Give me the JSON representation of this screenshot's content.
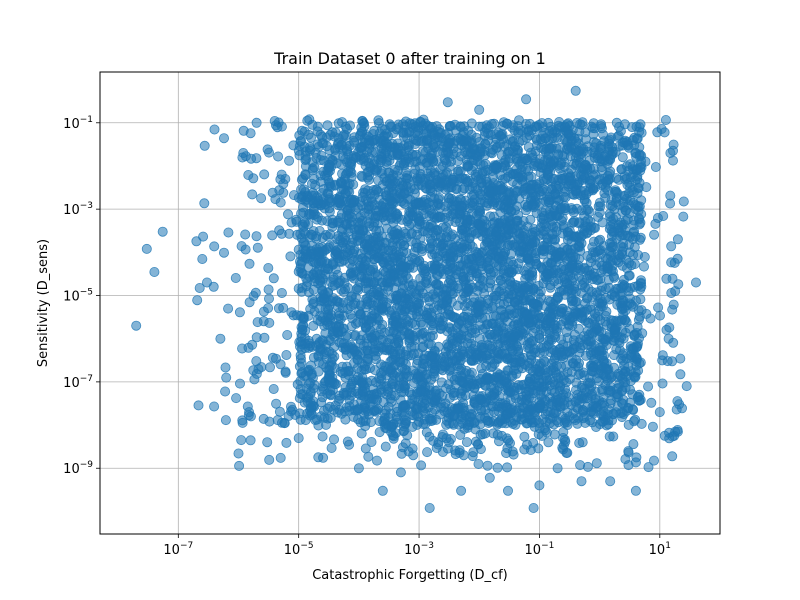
{
  "chart_data": {
    "type": "scatter",
    "title": "Train Dataset 0 after training on 1",
    "xlabel": "Catastrophic Forgetting (D_cf)",
    "ylabel": "Sensitivity (D_sens)",
    "xscale": "log",
    "yscale": "log",
    "xlim": [
      5e-09,
      100
    ],
    "ylim": [
      3e-11,
      1.5
    ],
    "xticks": [
      {
        "value": 1e-07,
        "base": "10",
        "exp": "−7"
      },
      {
        "value": 1e-05,
        "base": "10",
        "exp": "−5"
      },
      {
        "value": 0.001,
        "base": "10",
        "exp": "−3"
      },
      {
        "value": 0.1,
        "base": "10",
        "exp": "−1"
      },
      {
        "value": 10,
        "base": "10",
        "exp": "1"
      }
    ],
    "yticks": [
      {
        "value": 1e-09,
        "base": "10",
        "exp": "−9"
      },
      {
        "value": 1e-07,
        "base": "10",
        "exp": "−7"
      },
      {
        "value": 1e-05,
        "base": "10",
        "exp": "−5"
      },
      {
        "value": 0.001,
        "base": "10",
        "exp": "−3"
      },
      {
        "value": 0.1,
        "base": "10",
        "exp": "−1"
      }
    ],
    "grid": true,
    "marker_color": "#1f77b4",
    "marker_alpha": 0.55,
    "points": [
      {
        "x": 2e-08,
        "y": 2e-06
      },
      {
        "x": 3e-08,
        "y": 0.00012
      },
      {
        "x": 4e-08,
        "y": 3.5e-05
      },
      {
        "x": 5.5e-08,
        "y": 0.0003
      },
      {
        "x": 2e-07,
        "y": 0.00018
      },
      {
        "x": 2.5e-07,
        "y": 7e-05
      },
      {
        "x": 3e-07,
        "y": 2e-05
      },
      {
        "x": 4e-07,
        "y": 0.07
      },
      {
        "x": 5e-07,
        "y": 1e-06
      },
      {
        "x": 6e-07,
        "y": 6e-08
      },
      {
        "x": 1e-06,
        "y": 2.2e-09
      },
      {
        "x": 1.2e-06,
        "y": 0.02
      },
      {
        "x": 1.5e-06,
        "y": 2e-08
      },
      {
        "x": 2e-06,
        "y": 0.1
      },
      {
        "x": 3e-06,
        "y": 4e-09
      },
      {
        "x": 4e-06,
        "y": 0.11
      },
      {
        "x": 6e-06,
        "y": 0.005
      },
      {
        "x": 1e-05,
        "y": 5e-09
      },
      {
        "x": 1.5e-05,
        "y": 0.12
      },
      {
        "x": 0.0001,
        "y": 1e-09
      },
      {
        "x": 0.0002,
        "y": 1.5e-09
      },
      {
        "x": 0.00025,
        "y": 3e-10
      },
      {
        "x": 0.0005,
        "y": 8e-10
      },
      {
        "x": 0.0008,
        "y": 2e-09
      },
      {
        "x": 0.0015,
        "y": 1.2e-10
      },
      {
        "x": 0.003,
        "y": 0.3
      },
      {
        "x": 0.005,
        "y": 3e-10
      },
      {
        "x": 0.01,
        "y": 0.2
      },
      {
        "x": 0.015,
        "y": 6e-10
      },
      {
        "x": 0.03,
        "y": 3e-10
      },
      {
        "x": 0.06,
        "y": 0.35
      },
      {
        "x": 0.08,
        "y": 1.2e-10
      },
      {
        "x": 0.1,
        "y": 4e-10
      },
      {
        "x": 0.2,
        "y": 1e-09
      },
      {
        "x": 0.4,
        "y": 0.55
      },
      {
        "x": 0.5,
        "y": 5e-10
      },
      {
        "x": 1.5,
        "y": 5e-10
      },
      {
        "x": 3,
        "y": 2.5e-09
      },
      {
        "x": 4,
        "y": 3e-10
      },
      {
        "x": 8,
        "y": 1.5e-09
      },
      {
        "x": 10,
        "y": 2e-08
      },
      {
        "x": 15,
        "y": 0.02
      },
      {
        "x": 18,
        "y": 7e-09
      },
      {
        "x": 20,
        "y": 0.0002
      },
      {
        "x": 22,
        "y": 1.5e-07
      },
      {
        "x": 25,
        "y": 0.0015
      },
      {
        "x": 28,
        "y": 8e-08
      },
      {
        "x": 40,
        "y": 2e-05
      },
      {
        "x": 12,
        "y": 0.06
      },
      {
        "x": 14,
        "y": 1e-06
      },
      {
        "x": 16,
        "y": 3e-07
      }
    ],
    "density_regions": [
      {
        "x": [
          1e-05,
          5
        ],
        "y": [
          1e-08,
          0.1
        ],
        "n": 3500
      },
      {
        "x": [
          0.0001,
          0.5
        ],
        "y": [
          2e-09,
          0.12
        ],
        "n": 700
      },
      {
        "x": [
          1e-06,
          20
        ],
        "y": [
          1e-09,
          0.12
        ],
        "n": 600
      },
      {
        "x": [
          2e-07,
          30
        ],
        "y": [
          1e-08,
          0.1
        ],
        "n": 180
      }
    ]
  }
}
